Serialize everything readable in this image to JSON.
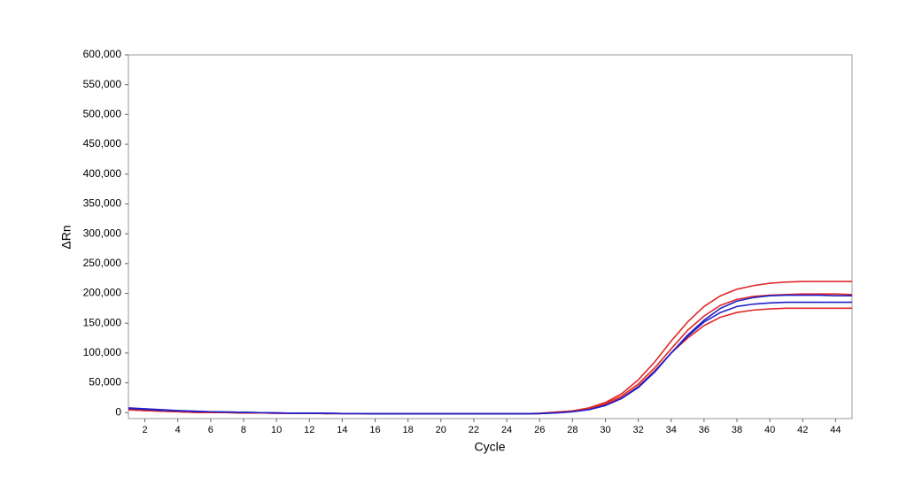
{
  "chart_data": {
    "type": "line",
    "x_label": "Cycle",
    "y_label": "ΔRn",
    "grid": false,
    "x": [
      1,
      2,
      3,
      4,
      5,
      6,
      7,
      8,
      9,
      10,
      11,
      12,
      13,
      14,
      15,
      16,
      17,
      18,
      19,
      20,
      21,
      22,
      23,
      24,
      25,
      26,
      27,
      28,
      29,
      30,
      31,
      32,
      33,
      34,
      35,
      36,
      37,
      38,
      39,
      40,
      41,
      42,
      43,
      44,
      45
    ],
    "xlim": [
      1,
      45
    ],
    "xticks": [
      2,
      4,
      6,
      8,
      10,
      12,
      14,
      16,
      18,
      20,
      22,
      24,
      26,
      28,
      30,
      32,
      34,
      36,
      38,
      40,
      42,
      44
    ],
    "ylim": [
      -10000,
      600000
    ],
    "yticks": [
      0,
      {
        "value": 50000,
        "label": "50,000"
      },
      {
        "value": 100000,
        "label": "100,000"
      },
      {
        "value": 150000,
        "label": "150,000"
      },
      {
        "value": 200000,
        "label": "200,000"
      },
      {
        "value": 250000,
        "label": "250,000"
      },
      {
        "value": 300000,
        "label": "300,000"
      },
      {
        "value": 350000,
        "label": "350,000"
      },
      {
        "value": 400000,
        "label": "400,000"
      },
      {
        "value": 450000,
        "label": "450,000"
      },
      {
        "value": 500000,
        "label": "500,000"
      },
      {
        "value": 550000,
        "label": "550,000"
      },
      {
        "value": 600000,
        "label": "600,000"
      }
    ],
    "series": [
      {
        "color": "#e02828",
        "values": [
          5000,
          3500,
          2500,
          1500,
          500,
          0,
          0,
          -500,
          -500,
          -1000,
          -1000,
          -1000,
          -1500,
          -1500,
          -1500,
          -2000,
          -2000,
          -2000,
          -2000,
          -2000,
          -2000,
          -2000,
          -2000,
          -2000,
          -2000,
          -1000,
          1000,
          3000,
          8000,
          17000,
          32000,
          55000,
          85000,
          120000,
          152000,
          178000,
          196000,
          207000,
          213000,
          217000,
          219000,
          220000,
          220000,
          220000,
          220000
        ]
      },
      {
        "color": "#e02828",
        "values": [
          5000,
          3500,
          2500,
          1500,
          500,
          0,
          0,
          -500,
          -500,
          -1000,
          -1000,
          -1000,
          -1500,
          -1500,
          -1500,
          -2000,
          -2000,
          -2000,
          -2000,
          -2000,
          -2000,
          -2000,
          -2000,
          -2000,
          -2000,
          -1500,
          500,
          2500,
          7000,
          15000,
          28000,
          48000,
          75000,
          107000,
          138000,
          162000,
          180000,
          190000,
          195000,
          197000,
          198000,
          199000,
          199000,
          199000,
          198000
        ]
      },
      {
        "color": "#e02828",
        "values": [
          5000,
          3500,
          2500,
          1500,
          500,
          0,
          0,
          -500,
          -500,
          -1000,
          -1000,
          -1000,
          -1500,
          -1500,
          -1500,
          -2000,
          -2000,
          -2000,
          -2000,
          -2000,
          -2000,
          -2000,
          -2000,
          -2000,
          -2000,
          -1500,
          0,
          2000,
          6000,
          13000,
          25000,
          44000,
          70000,
          100000,
          125000,
          146000,
          160000,
          168000,
          172000,
          174000,
          175000,
          175000,
          175000,
          175000,
          175000
        ]
      },
      {
        "color": "#2020c8",
        "values": [
          7000,
          5500,
          4000,
          3000,
          2000,
          1500,
          1000,
          500,
          0,
          -500,
          -1000,
          -1000,
          -1000,
          -1500,
          -1500,
          -2000,
          -2000,
          -2000,
          -2000,
          -2000,
          -2000,
          -2000,
          -2000,
          -2000,
          -2000,
          -1500,
          -500,
          1500,
          5000,
          12000,
          24000,
          42000,
          68000,
          100000,
          130000,
          155000,
          175000,
          187000,
          193000,
          196000,
          197000,
          197000,
          197000,
          196000,
          196000
        ]
      },
      {
        "color": "#2020c8",
        "values": [
          8000,
          6500,
          5000,
          3500,
          2500,
          1500,
          1000,
          500,
          0,
          -500,
          -1000,
          -1000,
          -1000,
          -1500,
          -1500,
          -2000,
          -2000,
          -2000,
          -2000,
          -2000,
          -2000,
          -2000,
          -2000,
          -2000,
          -2000,
          -1500,
          -500,
          1500,
          5000,
          12000,
          24000,
          43000,
          69000,
          100000,
          128000,
          152000,
          168000,
          178000,
          182000,
          184000,
          185000,
          185000,
          185000,
          185000,
          185000
        ]
      }
    ]
  }
}
